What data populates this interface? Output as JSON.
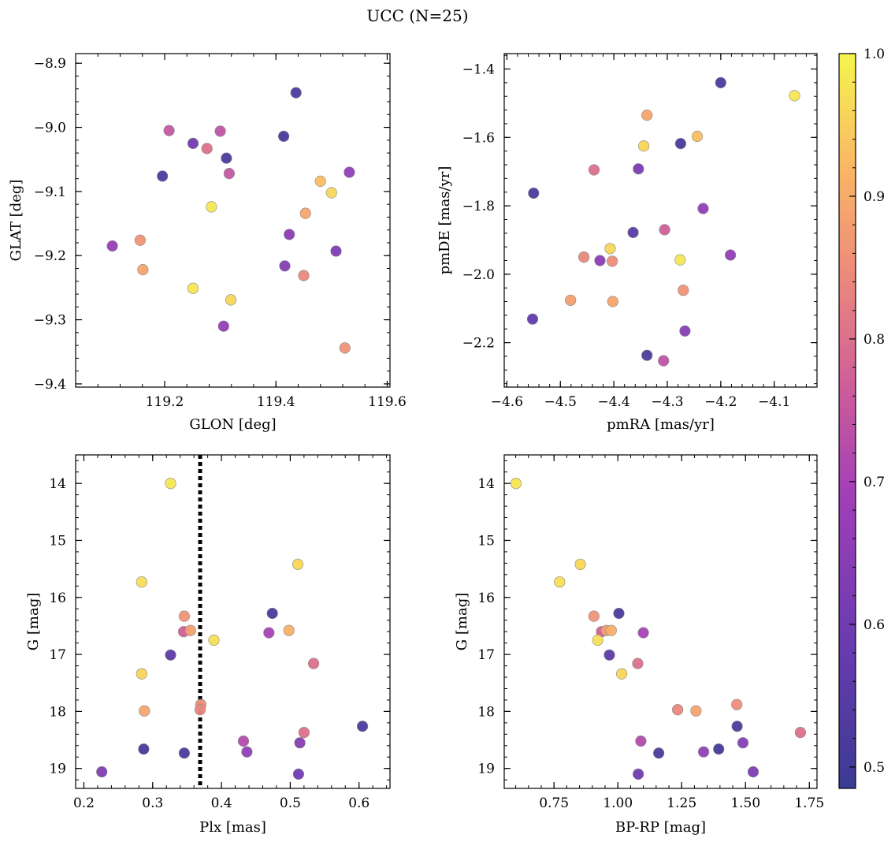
{
  "title": "UCC (N=25)",
  "colorbar": {
    "min": 0.485,
    "max": 1.0,
    "ticks": [
      0.5,
      0.6,
      0.7,
      0.8,
      0.9,
      1.0
    ],
    "tick_labels": [
      "0.5",
      "0.6",
      "0.7",
      "0.8",
      "0.9",
      "1.0"
    ],
    "colormap": "plasma"
  },
  "chart_data": [
    {
      "id": "glon-glat",
      "type": "scatter",
      "xlabel": "GLON [deg]",
      "ylabel": "GLAT [deg]",
      "xlim": [
        119.04,
        119.605
      ],
      "ylim": [
        -9.405,
        -8.885
      ],
      "xticks": [
        119.2,
        119.4,
        119.6
      ],
      "xtick_labels": [
        "119.2",
        "119.4",
        "119.6"
      ],
      "yticks": [
        -8.9,
        -9.0,
        -9.1,
        -9.2,
        -9.3,
        -9.4
      ],
      "ytick_labels": [
        "−8.9",
        "−9.0",
        "−9.1",
        "−9.2",
        "−9.3",
        "−9.4"
      ],
      "points": [
        {
          "x": 119.436,
          "y": -8.946,
          "c": 0.52
        },
        {
          "x": 119.414,
          "y": -9.014,
          "c": 0.51
        },
        {
          "x": 119.311,
          "y": -9.048,
          "c": 0.52
        },
        {
          "x": 119.196,
          "y": -9.076,
          "c": 0.52
        },
        {
          "x": 119.251,
          "y": -9.025,
          "c": 0.6
        },
        {
          "x": 119.208,
          "y": -9.005,
          "c": 0.75
        },
        {
          "x": 119.3,
          "y": -9.006,
          "c": 0.74
        },
        {
          "x": 119.276,
          "y": -9.033,
          "c": 0.8
        },
        {
          "x": 119.316,
          "y": -9.072,
          "c": 0.75
        },
        {
          "x": 119.48,
          "y": -9.084,
          "c": 0.93
        },
        {
          "x": 119.532,
          "y": -9.07,
          "c": 0.66
        },
        {
          "x": 119.5,
          "y": -9.102,
          "c": 0.96
        },
        {
          "x": 119.284,
          "y": -9.124,
          "c": 0.98
        },
        {
          "x": 119.453,
          "y": -9.134,
          "c": 0.89
        },
        {
          "x": 119.424,
          "y": -9.167,
          "c": 0.65
        },
        {
          "x": 119.508,
          "y": -9.193,
          "c": 0.62
        },
        {
          "x": 119.106,
          "y": -9.185,
          "c": 0.67
        },
        {
          "x": 119.156,
          "y": -9.176,
          "c": 0.86
        },
        {
          "x": 119.161,
          "y": -9.222,
          "c": 0.89
        },
        {
          "x": 119.416,
          "y": -9.216,
          "c": 0.64
        },
        {
          "x": 119.45,
          "y": -9.231,
          "c": 0.84
        },
        {
          "x": 119.251,
          "y": -9.251,
          "c": 0.98
        },
        {
          "x": 119.319,
          "y": -9.269,
          "c": 0.96
        },
        {
          "x": 119.306,
          "y": -9.31,
          "c": 0.66
        },
        {
          "x": 119.524,
          "y": -9.344,
          "c": 0.86
        }
      ]
    },
    {
      "id": "pmra-pmde",
      "type": "scatter",
      "xlabel": "pmRA [mas/yr]",
      "ylabel": "pmDE [mas/yr]",
      "xlim": [
        -4.605,
        -4.02
      ],
      "ylim": [
        -2.33,
        -1.355
      ],
      "xticks": [
        -4.6,
        -4.5,
        -4.4,
        -4.3,
        -4.2,
        -4.1
      ],
      "xtick_labels": [
        "−4.6",
        "−4.5",
        "−4.4",
        "−4.3",
        "−4.2",
        "−4.1"
      ],
      "yticks": [
        -1.4,
        -1.6,
        -1.8,
        -2.0,
        -2.2
      ],
      "ytick_labels": [
        "−1.4",
        "−1.6",
        "−1.8",
        "−2.0",
        "−2.2"
      ],
      "points": [
        {
          "x": -4.2,
          "y": -1.44,
          "c": 0.52
        },
        {
          "x": -4.062,
          "y": -1.478,
          "c": 0.98
        },
        {
          "x": -4.338,
          "y": -1.535,
          "c": 0.89
        },
        {
          "x": -4.244,
          "y": -1.597,
          "c": 0.93
        },
        {
          "x": -4.344,
          "y": -1.625,
          "c": 0.96
        },
        {
          "x": -4.275,
          "y": -1.618,
          "c": 0.51
        },
        {
          "x": -4.437,
          "y": -1.695,
          "c": 0.8
        },
        {
          "x": -4.354,
          "y": -1.692,
          "c": 0.62
        },
        {
          "x": -4.55,
          "y": -1.763,
          "c": 0.52
        },
        {
          "x": -4.233,
          "y": -1.808,
          "c": 0.66
        },
        {
          "x": -4.364,
          "y": -1.878,
          "c": 0.55
        },
        {
          "x": -4.305,
          "y": -1.87,
          "c": 0.77
        },
        {
          "x": -4.407,
          "y": -1.925,
          "c": 0.96
        },
        {
          "x": -4.182,
          "y": -1.944,
          "c": 0.66
        },
        {
          "x": -4.456,
          "y": -1.95,
          "c": 0.84
        },
        {
          "x": -4.426,
          "y": -1.96,
          "c": 0.65
        },
        {
          "x": -4.403,
          "y": -1.962,
          "c": 0.85
        },
        {
          "x": -4.276,
          "y": -1.958,
          "c": 0.98
        },
        {
          "x": -4.27,
          "y": -2.047,
          "c": 0.86
        },
        {
          "x": -4.481,
          "y": -2.076,
          "c": 0.88
        },
        {
          "x": -4.402,
          "y": -2.08,
          "c": 0.89
        },
        {
          "x": -4.552,
          "y": -2.131,
          "c": 0.57
        },
        {
          "x": -4.267,
          "y": -2.166,
          "c": 0.64
        },
        {
          "x": -4.338,
          "y": -2.237,
          "c": 0.52
        },
        {
          "x": -4.307,
          "y": -2.253,
          "c": 0.74
        }
      ]
    },
    {
      "id": "plx-g",
      "type": "scatter",
      "xlabel": "Plx [mas]",
      "ylabel": "G [mag]",
      "xlim": [
        0.188,
        0.645
      ],
      "ylim": [
        19.35,
        13.5
      ],
      "xticks": [
        0.2,
        0.3,
        0.4,
        0.5,
        0.6
      ],
      "xtick_labels": [
        "0.2",
        "0.3",
        "0.4",
        "0.5",
        "0.6"
      ],
      "yticks": [
        14,
        15,
        16,
        17,
        18,
        19
      ],
      "ytick_labels": [
        "14",
        "15",
        "16",
        "17",
        "18",
        "19"
      ],
      "vline": 0.369,
      "points": [
        {
          "x": 0.326,
          "y": 14.0,
          "c": 0.98
        },
        {
          "x": 0.511,
          "y": 15.42,
          "c": 0.96
        },
        {
          "x": 0.284,
          "y": 15.73,
          "c": 0.97
        },
        {
          "x": 0.474,
          "y": 16.28,
          "c": 0.52
        },
        {
          "x": 0.346,
          "y": 16.33,
          "c": 0.86
        },
        {
          "x": 0.345,
          "y": 16.6,
          "c": 0.77
        },
        {
          "x": 0.355,
          "y": 16.58,
          "c": 0.88
        },
        {
          "x": 0.469,
          "y": 16.62,
          "c": 0.7
        },
        {
          "x": 0.498,
          "y": 16.58,
          "c": 0.91
        },
        {
          "x": 0.389,
          "y": 16.75,
          "c": 0.97
        },
        {
          "x": 0.326,
          "y": 17.01,
          "c": 0.56
        },
        {
          "x": 0.534,
          "y": 17.16,
          "c": 0.8
        },
        {
          "x": 0.284,
          "y": 17.34,
          "c": 0.96
        },
        {
          "x": 0.37,
          "y": 17.88,
          "c": 0.85
        },
        {
          "x": 0.369,
          "y": 17.97,
          "c": 0.84
        },
        {
          "x": 0.288,
          "y": 17.99,
          "c": 0.89
        },
        {
          "x": 0.605,
          "y": 18.26,
          "c": 0.52
        },
        {
          "x": 0.52,
          "y": 18.37,
          "c": 0.8
        },
        {
          "x": 0.432,
          "y": 18.52,
          "c": 0.72
        },
        {
          "x": 0.514,
          "y": 18.55,
          "c": 0.64
        },
        {
          "x": 0.287,
          "y": 18.66,
          "c": 0.51
        },
        {
          "x": 0.437,
          "y": 18.71,
          "c": 0.66
        },
        {
          "x": 0.346,
          "y": 18.73,
          "c": 0.52
        },
        {
          "x": 0.226,
          "y": 19.06,
          "c": 0.63
        },
        {
          "x": 0.512,
          "y": 19.1,
          "c": 0.6
        }
      ]
    },
    {
      "id": "bprp-g",
      "type": "scatter",
      "xlabel": "BP-RP [mag]",
      "ylabel": "G [mag]",
      "xlim": [
        0.555,
        1.78
      ],
      "ylim": [
        19.35,
        13.5
      ],
      "xticks": [
        0.75,
        1.0,
        1.25,
        1.5,
        1.75
      ],
      "xtick_labels": [
        "0.75",
        "1.00",
        "1.25",
        "1.50",
        "1.75"
      ],
      "yticks": [
        14,
        15,
        16,
        17,
        18,
        19
      ],
      "ytick_labels": [
        "14",
        "15",
        "16",
        "17",
        "18",
        "19"
      ],
      "points": [
        {
          "x": 0.601,
          "y": 14.0,
          "c": 0.98
        },
        {
          "x": 0.853,
          "y": 15.42,
          "c": 0.96
        },
        {
          "x": 0.772,
          "y": 15.73,
          "c": 0.97
        },
        {
          "x": 1.004,
          "y": 16.28,
          "c": 0.52
        },
        {
          "x": 0.906,
          "y": 16.33,
          "c": 0.86
        },
        {
          "x": 0.936,
          "y": 16.6,
          "c": 0.77
        },
        {
          "x": 0.955,
          "y": 16.58,
          "c": 0.88
        },
        {
          "x": 0.974,
          "y": 16.58,
          "c": 0.91
        },
        {
          "x": 1.1,
          "y": 16.62,
          "c": 0.7
        },
        {
          "x": 0.921,
          "y": 16.75,
          "c": 0.97
        },
        {
          "x": 0.967,
          "y": 17.01,
          "c": 0.56
        },
        {
          "x": 1.078,
          "y": 17.16,
          "c": 0.8
        },
        {
          "x": 1.015,
          "y": 17.34,
          "c": 0.96
        },
        {
          "x": 1.466,
          "y": 17.88,
          "c": 0.85
        },
        {
          "x": 1.234,
          "y": 17.97,
          "c": 0.84
        },
        {
          "x": 1.306,
          "y": 17.99,
          "c": 0.89
        },
        {
          "x": 1.467,
          "y": 18.26,
          "c": 0.52
        },
        {
          "x": 1.715,
          "y": 18.37,
          "c": 0.8
        },
        {
          "x": 1.09,
          "y": 18.52,
          "c": 0.72
        },
        {
          "x": 1.49,
          "y": 18.55,
          "c": 0.64
        },
        {
          "x": 1.395,
          "y": 18.66,
          "c": 0.51
        },
        {
          "x": 1.336,
          "y": 18.71,
          "c": 0.66
        },
        {
          "x": 1.16,
          "y": 18.73,
          "c": 0.52
        },
        {
          "x": 1.53,
          "y": 19.06,
          "c": 0.63
        },
        {
          "x": 1.08,
          "y": 19.1,
          "c": 0.6
        }
      ]
    }
  ]
}
